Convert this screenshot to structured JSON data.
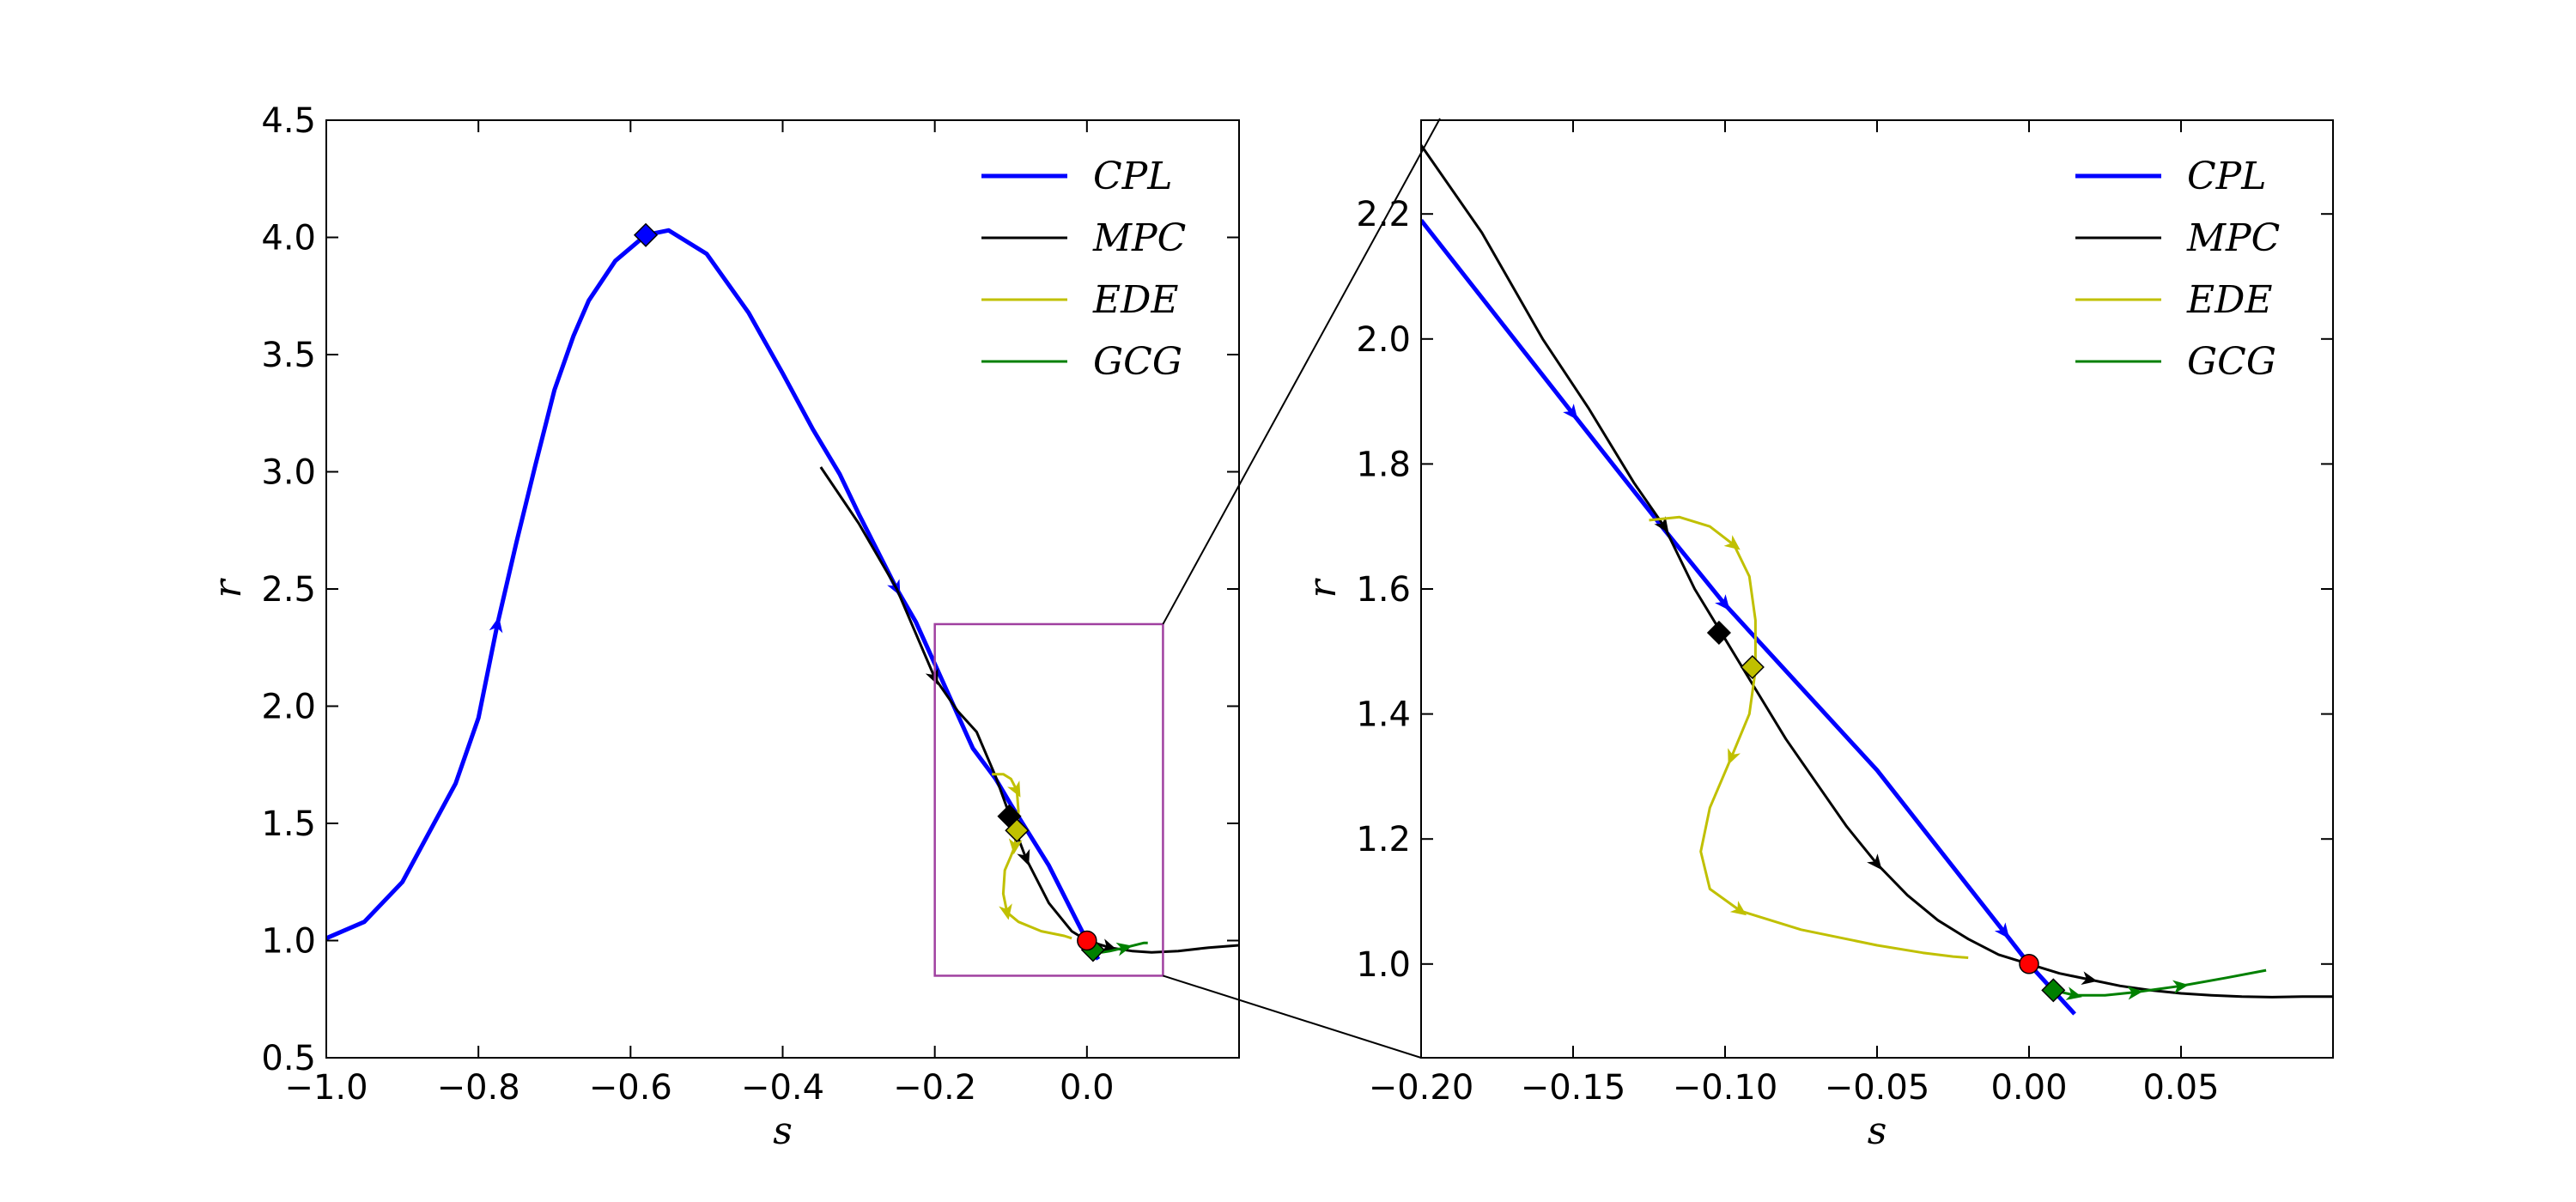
{
  "chart_data": [
    {
      "type": "line",
      "panel": "left",
      "xlabel": "s",
      "ylabel": "r",
      "xlim": [
        -1.0,
        0.2
      ],
      "ylim": [
        0.5,
        4.5
      ],
      "xticks": [
        -1.0,
        -0.8,
        -0.6,
        -0.4,
        -0.2,
        0.0
      ],
      "xtick_labels": [
        "−1.0",
        "−0.8",
        "−0.6",
        "−0.4",
        "−0.2",
        "0.0"
      ],
      "yticks": [
        0.5,
        1.0,
        1.5,
        2.0,
        2.5,
        3.0,
        3.5,
        4.0,
        4.5
      ],
      "ytick_labels": [
        "0.5",
        "1.0",
        "1.5",
        "2.0",
        "2.5",
        "3.0",
        "3.5",
        "4.0",
        "4.5"
      ],
      "legend": [
        "CPL",
        "MPC",
        "EDE",
        "GCG"
      ],
      "legend_location": "top-right",
      "zoom_box": {
        "x": [
          -0.2,
          0.1
        ],
        "y": [
          0.85,
          2.35
        ]
      },
      "series": [
        {
          "name": "CPL",
          "color": "#0000ff",
          "points": [
            [
              -1.0,
              1.01
            ],
            [
              -0.95,
              1.08
            ],
            [
              -0.9,
              1.25
            ],
            [
              -0.85,
              1.55
            ],
            [
              -0.83,
              1.67
            ],
            [
              -0.8,
              1.95
            ],
            [
              -0.775,
              2.35
            ],
            [
              -0.75,
              2.7
            ],
            [
              -0.725,
              3.03
            ],
            [
              -0.7,
              3.35
            ],
            [
              -0.675,
              3.58
            ],
            [
              -0.655,
              3.73
            ],
            [
              -0.62,
              3.9
            ],
            [
              -0.58,
              4.01
            ],
            [
              -0.55,
              4.03
            ],
            [
              -0.5,
              3.93
            ],
            [
              -0.445,
              3.68
            ],
            [
              -0.4,
              3.42
            ],
            [
              -0.36,
              3.18
            ],
            [
              -0.325,
              2.99
            ],
            [
              -0.3,
              2.82
            ],
            [
              -0.25,
              2.5
            ],
            [
              -0.225,
              2.36
            ],
            [
              -0.2,
              2.18
            ],
            [
              -0.15,
              1.82
            ],
            [
              -0.12,
              1.69
            ],
            [
              -0.1,
              1.58
            ],
            [
              -0.05,
              1.32
            ],
            [
              -0.008,
              1.05
            ],
            [
              0.0,
              1.0
            ],
            [
              0.015,
              0.92
            ]
          ]
        },
        {
          "name": "MPC",
          "color": "#000000",
          "points": [
            [
              -0.35,
              3.02
            ],
            [
              -0.3,
              2.78
            ],
            [
              -0.25,
              2.5
            ],
            [
              -0.2,
              2.12
            ],
            [
              -0.17,
              1.98
            ],
            [
              -0.145,
              1.89
            ],
            [
              -0.12,
              1.7
            ],
            [
              -0.1,
              1.52
            ],
            [
              -0.08,
              1.35
            ],
            [
              -0.05,
              1.16
            ],
            [
              -0.02,
              1.04
            ],
            [
              0.0,
              1.0
            ],
            [
              0.03,
              0.97
            ],
            [
              0.06,
              0.955
            ],
            [
              0.085,
              0.95
            ],
            [
              0.12,
              0.955
            ],
            [
              0.16,
              0.97
            ],
            [
              0.2,
              0.98
            ]
          ]
        },
        {
          "name": "EDE",
          "color": "#c0c000",
          "points": [
            [
              -0.125,
              1.71
            ],
            [
              -0.11,
              1.71
            ],
            [
              -0.1,
              1.69
            ],
            [
              -0.092,
              1.64
            ],
            [
              -0.09,
              1.55
            ],
            [
              -0.092,
              1.48
            ],
            [
              -0.095,
              1.4
            ],
            [
              -0.1,
              1.36
            ],
            [
              -0.108,
              1.3
            ],
            [
              -0.11,
              1.2
            ],
            [
              -0.105,
              1.12
            ],
            [
              -0.09,
              1.08
            ],
            [
              -0.06,
              1.04
            ],
            [
              -0.03,
              1.02
            ],
            [
              -0.02,
              1.01
            ]
          ]
        },
        {
          "name": "GCG",
          "color": "#008000",
          "points": [
            [
              0.008,
              0.96
            ],
            [
              0.02,
              0.95
            ],
            [
              0.03,
              0.955
            ],
            [
              0.05,
              0.97
            ],
            [
              0.075,
              0.99
            ],
            [
              0.08,
              0.99
            ]
          ]
        }
      ],
      "markers": [
        {
          "series": "CPL",
          "shape": "diamond",
          "at": [
            -0.58,
            4.01
          ]
        },
        {
          "series": "MPC",
          "shape": "diamond",
          "at": [
            -0.102,
            1.53
          ]
        },
        {
          "series": "EDE",
          "shape": "diamond",
          "at": [
            -0.092,
            1.47
          ]
        },
        {
          "series": "GCG",
          "shape": "diamond",
          "at": [
            0.008,
            0.96
          ]
        },
        {
          "series": "origin",
          "shape": "circle",
          "color": "#ff0000",
          "at": [
            0.0,
            1.0
          ]
        }
      ]
    },
    {
      "type": "line",
      "panel": "right",
      "xlabel": "s",
      "ylabel": "r",
      "xlim": [
        -0.2,
        0.1
      ],
      "ylim": [
        0.85,
        2.35
      ],
      "xticks": [
        -0.2,
        -0.15,
        -0.1,
        -0.05,
        0.0,
        0.05
      ],
      "xtick_labels": [
        "−0.20",
        "−0.15",
        "−0.10",
        "−0.05",
        "0.00",
        "0.05"
      ],
      "yticks": [
        1.0,
        1.2,
        1.4,
        1.6,
        1.8,
        2.0,
        2.2
      ],
      "ytick_labels": [
        "1.0",
        "1.2",
        "1.4",
        "1.6",
        "1.8",
        "2.0",
        "2.2"
      ],
      "legend": [
        "CPL",
        "MPC",
        "EDE",
        "GCG"
      ],
      "legend_location": "top-right",
      "series": [
        {
          "name": "CPL",
          "color": "#0000ff",
          "points": [
            [
              -0.2,
              2.19
            ],
            [
              -0.15,
              1.88
            ],
            [
              -0.12,
              1.695
            ],
            [
              -0.1,
              1.575
            ],
            [
              -0.05,
              1.31
            ],
            [
              -0.008,
              1.05
            ],
            [
              0.0,
              1.0
            ],
            [
              0.015,
              0.92
            ]
          ]
        },
        {
          "name": "MPC",
          "color": "#000000",
          "points": [
            [
              -0.2,
              2.31
            ],
            [
              -0.18,
              2.17
            ],
            [
              -0.16,
              2.0
            ],
            [
              -0.145,
              1.89
            ],
            [
              -0.13,
              1.77
            ],
            [
              -0.12,
              1.7
            ],
            [
              -0.11,
              1.6
            ],
            [
              -0.1,
              1.52
            ],
            [
              -0.09,
              1.44
            ],
            [
              -0.08,
              1.36
            ],
            [
              -0.07,
              1.29
            ],
            [
              -0.06,
              1.22
            ],
            [
              -0.05,
              1.16
            ],
            [
              -0.04,
              1.11
            ],
            [
              -0.03,
              1.07
            ],
            [
              -0.02,
              1.04
            ],
            [
              -0.01,
              1.015
            ],
            [
              0.0,
              1.0
            ],
            [
              0.01,
              0.985
            ],
            [
              0.02,
              0.975
            ],
            [
              0.03,
              0.965
            ],
            [
              0.04,
              0.958
            ],
            [
              0.05,
              0.953
            ],
            [
              0.06,
              0.95
            ],
            [
              0.07,
              0.948
            ],
            [
              0.08,
              0.947
            ],
            [
              0.09,
              0.948
            ],
            [
              0.1,
              0.948
            ]
          ]
        },
        {
          "name": "EDE",
          "color": "#c0c000",
          "points": [
            [
              -0.125,
              1.71
            ],
            [
              -0.115,
              1.715
            ],
            [
              -0.105,
              1.7
            ],
            [
              -0.097,
              1.67
            ],
            [
              -0.092,
              1.62
            ],
            [
              -0.09,
              1.55
            ],
            [
              -0.09,
              1.47
            ],
            [
              -0.092,
              1.4
            ],
            [
              -0.098,
              1.33
            ],
            [
              -0.105,
              1.25
            ],
            [
              -0.108,
              1.18
            ],
            [
              -0.105,
              1.12
            ],
            [
              -0.095,
              1.085
            ],
            [
              -0.075,
              1.055
            ],
            [
              -0.05,
              1.03
            ],
            [
              -0.035,
              1.018
            ],
            [
              -0.025,
              1.012
            ],
            [
              -0.02,
              1.01
            ]
          ]
        },
        {
          "name": "GCG",
          "color": "#008000",
          "points": [
            [
              0.008,
              0.958
            ],
            [
              0.015,
              0.95
            ],
            [
              0.025,
              0.95
            ],
            [
              0.035,
              0.955
            ],
            [
              0.05,
              0.965
            ],
            [
              0.065,
              0.978
            ],
            [
              0.078,
              0.99
            ]
          ]
        }
      ],
      "markers": [
        {
          "series": "MPC",
          "shape": "diamond",
          "at": [
            -0.102,
            1.53
          ]
        },
        {
          "series": "EDE",
          "shape": "diamond",
          "at": [
            -0.091,
            1.475
          ]
        },
        {
          "series": "GCG",
          "shape": "diamond",
          "at": [
            0.008,
            0.958
          ]
        },
        {
          "series": "origin",
          "shape": "circle",
          "color": "#ff0000",
          "at": [
            0.0,
            1.0
          ]
        }
      ]
    }
  ]
}
